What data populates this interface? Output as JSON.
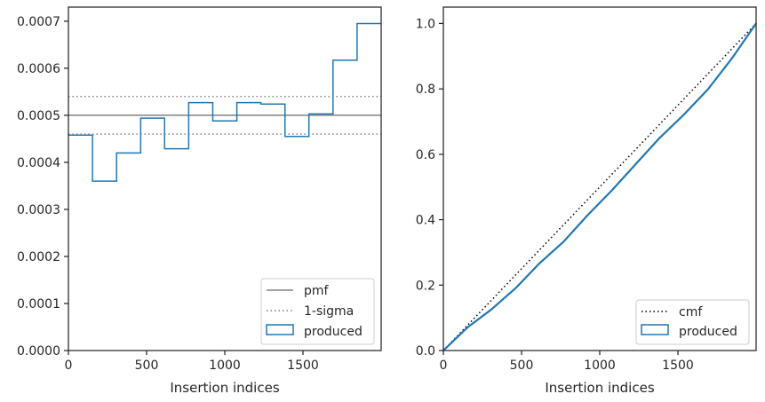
{
  "chart_data": [
    {
      "type": "histogram",
      "xlabel": "Insertion indices",
      "ylabel": "",
      "xlim": [
        0,
        2000
      ],
      "ylim": [
        0,
        0.00073
      ],
      "xticks": [
        0,
        500,
        1000,
        1500
      ],
      "xtick_labels": [
        "0",
        "500",
        "1000",
        "1500"
      ],
      "yticks": [
        0,
        0.0001,
        0.0002,
        0.0003,
        0.0004,
        0.0005,
        0.0006,
        0.0007
      ],
      "ytick_labels": [
        "0.0000",
        "0.0001",
        "0.0002",
        "0.0003",
        "0.0004",
        "0.0005",
        "0.0006",
        "0.0007"
      ],
      "grid": false,
      "legend_position": "lower right",
      "pmf": 0.0005,
      "sigma_band": [
        0.00046,
        0.00054
      ],
      "bin_edges": [
        0,
        154,
        308,
        462,
        615,
        769,
        923,
        1077,
        1231,
        1385,
        1538,
        1692,
        1846,
        2000
      ],
      "values": [
        0.000458,
        0.00036,
        0.00042,
        0.000494,
        0.000429,
        0.000527,
        0.000488,
        0.000527,
        0.000524,
        0.000455,
        0.000503,
        0.000617,
        0.000695
      ],
      "series": [
        {
          "name": "pmf",
          "color": "#808080",
          "style": "solid"
        },
        {
          "name": "1-sigma",
          "color": "#808080",
          "style": "dotted"
        },
        {
          "name": "produced",
          "color": "#1f77b4",
          "style": "step"
        }
      ]
    },
    {
      "type": "line",
      "xlabel": "Insertion indices",
      "ylabel": "",
      "xlim": [
        0,
        2000
      ],
      "ylim": [
        0,
        1.05
      ],
      "xticks": [
        0,
        500,
        1000,
        1500
      ],
      "xtick_labels": [
        "0",
        "500",
        "1000",
        "1500"
      ],
      "yticks": [
        0,
        0.2,
        0.4,
        0.6,
        0.8,
        1.0
      ],
      "ytick_labels": [
        "0.0",
        "0.2",
        "0.4",
        "0.6",
        "0.8",
        "1.0"
      ],
      "grid": false,
      "legend_position": "lower right",
      "x": [
        0,
        154,
        308,
        462,
        615,
        769,
        923,
        1077,
        1231,
        1385,
        1538,
        1692,
        1846,
        2000
      ],
      "cmf": [
        0,
        1
      ],
      "produced": [
        0,
        0.0705,
        0.126,
        0.1907,
        0.2668,
        0.3329,
        0.4141,
        0.4893,
        0.5704,
        0.6511,
        0.7212,
        0.7987,
        0.8937,
        1.0
      ],
      "series": [
        {
          "name": "cmf",
          "color": "#000000",
          "style": "dotted"
        },
        {
          "name": "produced",
          "color": "#1f77b4",
          "style": "step"
        }
      ]
    }
  ]
}
